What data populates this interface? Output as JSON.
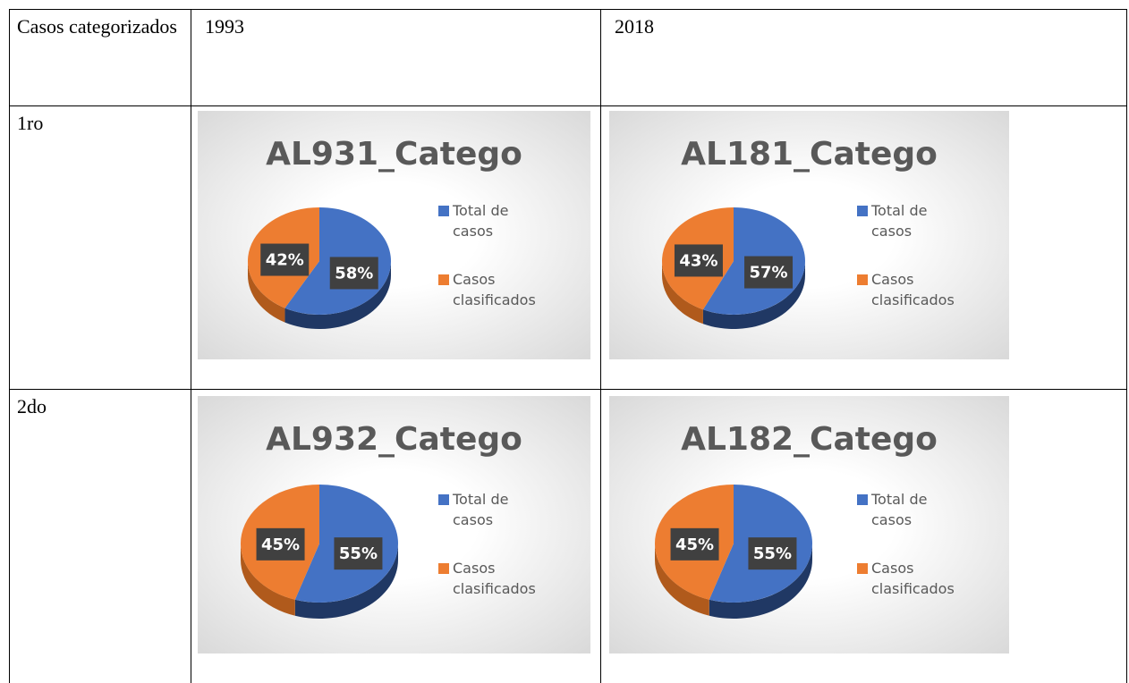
{
  "table": {
    "header": [
      "Casos categorizados",
      "1993",
      "2018"
    ],
    "rows": [
      [
        "1ro"
      ],
      [
        "2do"
      ]
    ]
  },
  "chart_data": [
    {
      "type": "pie",
      "title": "AL931_Catego",
      "categories": [
        "Total de casos",
        "Casos clasificados"
      ],
      "values": [
        58,
        42
      ],
      "value_labels": [
        "58%",
        "42%"
      ],
      "colors": [
        "#4472c4",
        "#ed7d31"
      ]
    },
    {
      "type": "pie",
      "title": "AL181_Catego",
      "categories": [
        "Total de casos",
        "Casos clasificados"
      ],
      "values": [
        57,
        43
      ],
      "value_labels": [
        "57%",
        "43%"
      ],
      "colors": [
        "#4472c4",
        "#ed7d31"
      ]
    },
    {
      "type": "pie",
      "title": "AL932_Catego",
      "categories": [
        "Total de casos",
        "Casos clasificados"
      ],
      "values": [
        55,
        45
      ],
      "value_labels": [
        "55%",
        "45%"
      ],
      "colors": [
        "#4472c4",
        "#ed7d31"
      ]
    },
    {
      "type": "pie",
      "title": "AL182_Catego",
      "categories": [
        "Total de casos",
        "Casos clasificados"
      ],
      "values": [
        55,
        45
      ],
      "value_labels": [
        "55%",
        "45%"
      ],
      "colors": [
        "#4472c4",
        "#ed7d31"
      ]
    }
  ]
}
